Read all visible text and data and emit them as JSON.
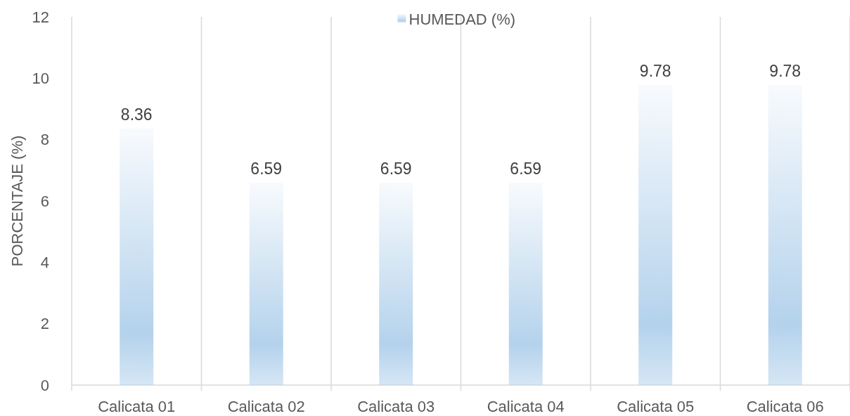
{
  "chart_data": {
    "type": "bar",
    "ylabel": "PORCENTAJE (%)",
    "categories": [
      "Calicata 01",
      "Calicata 02",
      "Calicata 03",
      "Calicata 04",
      "Calicata 05",
      "Calicata 06"
    ],
    "series": [
      {
        "name": "HUMEDAD (%)",
        "color": "#b4d2ec",
        "values": [
          8.36,
          6.59,
          6.59,
          6.59,
          9.78,
          9.78
        ]
      }
    ],
    "ylim": [
      0,
      12
    ],
    "yticks": [
      0,
      2,
      4,
      6,
      8,
      10,
      12
    ],
    "grid": "x",
    "legend": "top",
    "data_labels": true
  }
}
